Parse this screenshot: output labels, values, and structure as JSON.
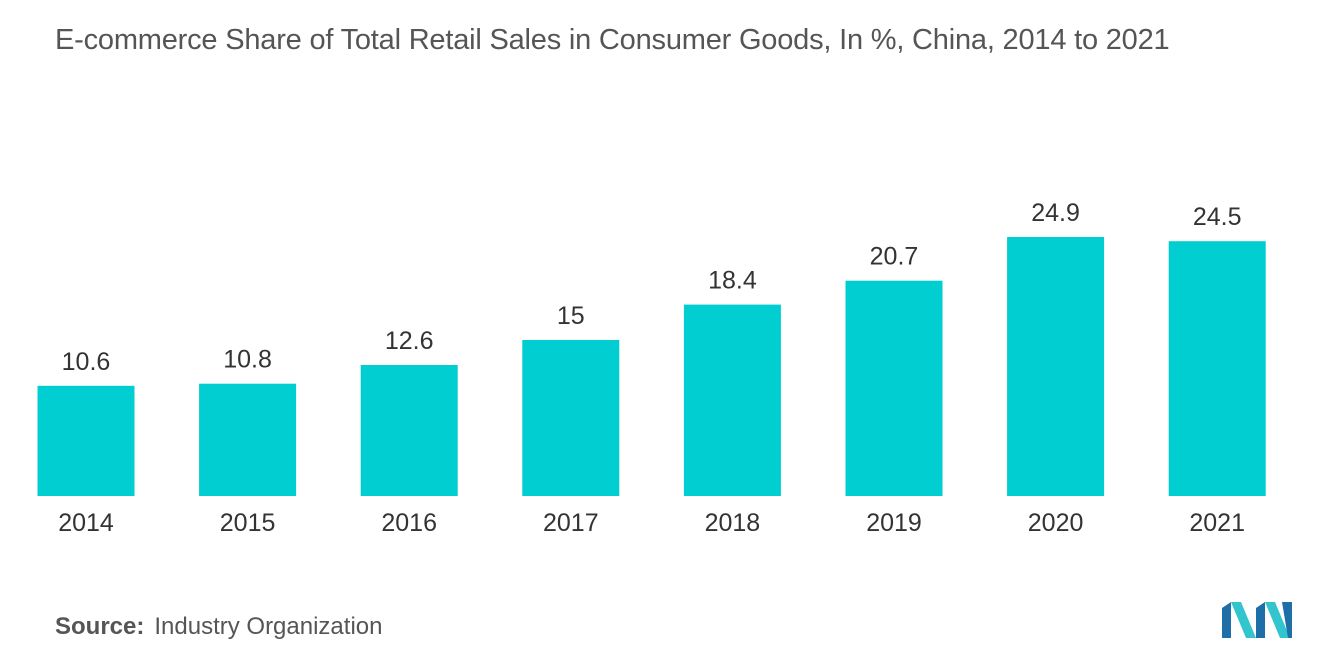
{
  "chart_data": {
    "type": "bar",
    "title": "E-commerce Share of Total Retail Sales in Consumer Goods, In %, China, 2014 to 2021",
    "categories": [
      "2014",
      "2015",
      "2016",
      "2017",
      "2018",
      "2019",
      "2020",
      "2021"
    ],
    "values": [
      10.6,
      10.8,
      12.6,
      15,
      18.4,
      20.7,
      24.9,
      24.5
    ],
    "value_labels": [
      "10.6",
      "10.8",
      "12.6",
      "15",
      "18.4",
      "20.7",
      "24.9",
      "24.5"
    ],
    "xlabel": "",
    "ylabel": "",
    "ylim": [
      0,
      25
    ],
    "grid": false,
    "legend": "none",
    "bar_color": "#00CED1"
  },
  "source": {
    "label": "Source:",
    "text": "Industry Organization"
  },
  "logo": {
    "icon": "mordor-intelligence-logo-icon",
    "colors": [
      "#1E6FA8",
      "#33C5CE"
    ]
  }
}
